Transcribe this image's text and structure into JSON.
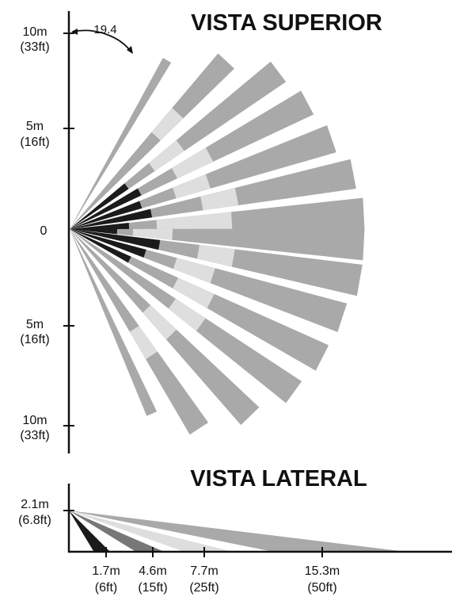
{
  "top_view": {
    "title": "VISTA SUPERIOR",
    "angle_label": "19.4",
    "y_labels": [
      {
        "line1": "10m",
        "line2": "(33ft)"
      },
      {
        "line1": "5m",
        "line2": "(16ft)"
      },
      {
        "line1": "0",
        "line2": ""
      },
      {
        "line1": "5m",
        "line2": "(16ft)"
      },
      {
        "line1": "10m",
        "line2": "(33ft)"
      }
    ]
  },
  "side_view": {
    "title": "VISTA LATERAL",
    "height_label": {
      "line1": "2.1m",
      "line2": "(6.8ft)"
    },
    "x_labels": [
      {
        "line1": "1.7m",
        "line2": "(6ft)"
      },
      {
        "line1": "4.6m",
        "line2": "(15ft)"
      },
      {
        "line1": "7.7m",
        "line2": "(25ft)"
      },
      {
        "line1": "15.3m",
        "line2": "(50ft)"
      }
    ]
  },
  "colors": {
    "beam_gray": "#a9a9a9",
    "beam_light": "#dedede",
    "beam_dark": "#1b1b1b",
    "beam_mid": "#777777"
  }
}
